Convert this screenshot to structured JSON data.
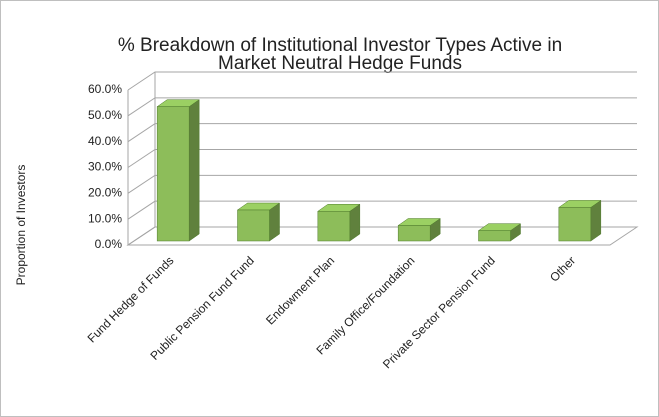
{
  "chart_data": {
    "type": "bar3d",
    "title": [
      "% Breakdown of Institutional Investor Types Active in",
      "Market Neutral Hedge Funds"
    ],
    "y_label": "Proportion of Investors",
    "categories": [
      "Fund Hedge of Funds",
      "Public Pension Fund Fund",
      "Endowment Plan",
      "Family Office/Foundation",
      "Private Sector Pension Fund",
      "Other"
    ],
    "values": [
      52,
      12,
      11.5,
      6,
      4,
      13
    ],
    "color": "#8dbd5a",
    "ylim": [
      0,
      60
    ],
    "yticks": [
      {
        "value": 0,
        "label": "0.0%"
      },
      {
        "value": 10,
        "label": "10.0%"
      },
      {
        "value": 20,
        "label": "20.0%"
      },
      {
        "value": 30,
        "label": "30.0%"
      },
      {
        "value": 40,
        "label": "40.0%"
      },
      {
        "value": 50,
        "label": "50.0%"
      },
      {
        "value": 60,
        "label": "60.0%"
      }
    ],
    "grid": true
  }
}
